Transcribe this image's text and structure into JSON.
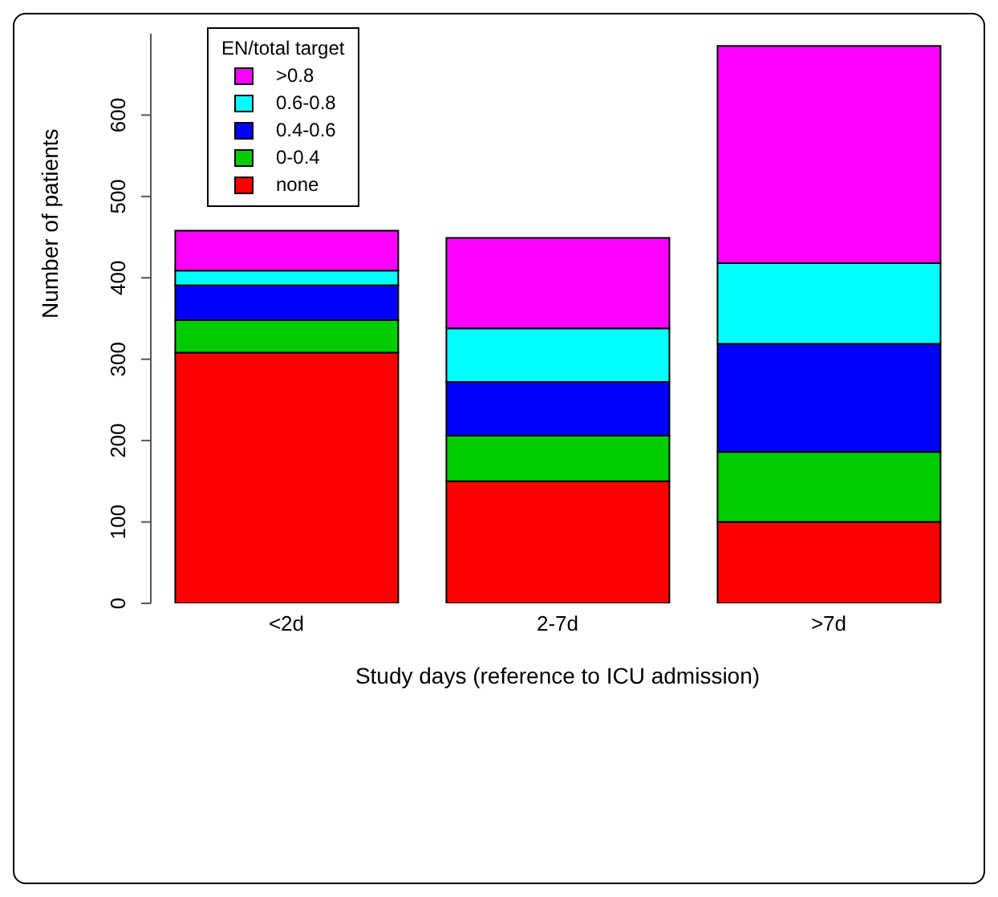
{
  "chart_data": {
    "type": "bar",
    "stacked": true,
    "xlabel": "Study days (reference to ICU admission)",
    "ylabel": "Number of patients",
    "legend_title": "EN/total target",
    "legend": "top left",
    "categories": [
      "<2d",
      "2-7d",
      ">7d"
    ],
    "series": [
      {
        "name": "none",
        "color": "#ff0000",
        "values": [
          308,
          150,
          100
        ]
      },
      {
        "name": "0-0.4",
        "color": "#00cd00",
        "values": [
          40,
          56,
          86
        ]
      },
      {
        "name": "0.4-0.6",
        "color": "#0000ff",
        "values": [
          43,
          66,
          133
        ]
      },
      {
        "name": "0.6-0.8",
        "color": "#00ffff",
        "values": [
          18,
          66,
          99
        ]
      },
      {
        "name": ">0.8",
        "color": "#ff00ff",
        "values": [
          49,
          111,
          267
        ]
      }
    ],
    "ylim": [
      0,
      700
    ],
    "yticks": [
      0,
      100,
      200,
      300,
      400,
      500,
      600
    ],
    "grid": false
  }
}
